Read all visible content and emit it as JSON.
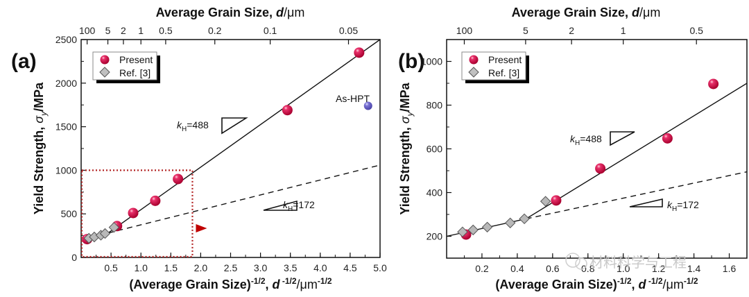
{
  "chart_data": [
    {
      "panel": "(a)",
      "type": "scatter",
      "title": "",
      "top_axis_title": "Average Grain Size, d/μm",
      "top_tick_values_um": [
        100,
        5,
        2,
        1,
        0.5,
        0.2,
        0.1,
        0.05
      ],
      "top_tick_labels": [
        "100",
        "5",
        "2",
        "1",
        "0.5",
        "0.2",
        "0.1",
        "0.05"
      ],
      "xlabel": "(Average Grain Size)^-1/2, d^-1/2/μm^-1/2",
      "ylabel": "Yield Strength, σy/MPa",
      "xlim": [
        0,
        5.0
      ],
      "ylim": [
        0,
        2500
      ],
      "x_ticks": [
        0.5,
        1.0,
        1.5,
        2.0,
        2.5,
        3.0,
        3.5,
        4.0,
        4.5,
        5.0
      ],
      "x_tick_labels": [
        "0.5",
        "1.0",
        "1.5",
        "2.0",
        "2.5",
        "3.0",
        "3.5",
        "4.0",
        "4.5",
        "5.0"
      ],
      "y_ticks": [
        0,
        500,
        1000,
        1500,
        2000,
        2500
      ],
      "y_tick_labels": [
        "0",
        "500",
        "1000",
        "1500",
        "2000",
        "2500"
      ],
      "legend": {
        "position": "top-left",
        "entries": [
          "Present",
          "Ref. [3]"
        ]
      },
      "series": [
        {
          "name": "Present",
          "marker": "sphere",
          "color": "#d0104c",
          "x": [
            0.1,
            0.6,
            0.87,
            1.24,
            1.62,
            3.45,
            4.65
          ],
          "y": [
            210,
            360,
            510,
            650,
            900,
            1690,
            2350
          ]
        },
        {
          "name": "Ref. [3]",
          "marker": "diamond",
          "color": "#b8b8b8",
          "x": [
            0.13,
            0.22,
            0.33,
            0.4,
            0.55
          ],
          "y": [
            220,
            235,
            255,
            275,
            345
          ]
        },
        {
          "name": "As-HPT",
          "marker": "sphere",
          "color": "#6e66c8",
          "x": [
            4.8
          ],
          "y": [
            1740
          ]
        }
      ],
      "fit_lines": [
        {
          "name": "kH=488 fit",
          "style": "solid",
          "slope": 488,
          "x": [
            0.1,
            0.45,
            5.0
          ],
          "y": [
            200,
            280,
            2500
          ]
        },
        {
          "name": "kH=172 fit",
          "style": "dashed",
          "slope": 172,
          "x": [
            0.45,
            5.0
          ],
          "y": [
            280,
            1060
          ]
        }
      ],
      "annotations": [
        {
          "text_k": "k",
          "text_sub": "H",
          "text_val": "=488",
          "kind": "slope-488"
        },
        {
          "text_k": "k",
          "text_sub": "H",
          "text_val": "=172",
          "kind": "slope-172"
        },
        {
          "text": "As-HPT",
          "kind": "label"
        }
      ],
      "zoom_box": {
        "x": [
          0,
          1.85
        ],
        "y": [
          0,
          1000
        ],
        "color": "#b22222"
      }
    },
    {
      "panel": "(b)",
      "type": "scatter",
      "top_axis_title": "Average Grain Size, d/μm",
      "top_tick_values_um": [
        100,
        5,
        2,
        1,
        0.5
      ],
      "top_tick_labels": [
        "100",
        "5",
        "2",
        "1",
        "0.5"
      ],
      "xlabel": "(Average Grain Size)^-1/2, d^-1/2/μm^-1/2",
      "ylabel": "Yield Strength, σy/MPa",
      "xlim": [
        0,
        1.7
      ],
      "ylim": [
        100,
        1100
      ],
      "x_ticks": [
        0.2,
        0.4,
        0.6,
        0.8,
        1.0,
        1.2,
        1.4,
        1.6
      ],
      "x_tick_labels": [
        "0.2",
        "0.4",
        "0.6",
        "0.8",
        "1.0",
        "1.2",
        "1.4",
        "1.6"
      ],
      "y_ticks": [
        200,
        400,
        600,
        800,
        1000
      ],
      "y_tick_labels": [
        "200",
        "400",
        "600",
        "800",
        "1000"
      ],
      "legend": {
        "position": "top-left",
        "entries": [
          "Present",
          "Ref. [3]"
        ]
      },
      "series": [
        {
          "name": "Present",
          "marker": "sphere",
          "color": "#d0104c",
          "x": [
            0.11,
            0.62,
            0.87,
            1.25,
            1.51
          ],
          "y": [
            208,
            364,
            510,
            648,
            897
          ]
        },
        {
          "name": "Ref. [3]",
          "marker": "diamond",
          "color": "#b8b8b8",
          "x": [
            0.09,
            0.15,
            0.23,
            0.36,
            0.44,
            0.56
          ],
          "y": [
            220,
            229,
            242,
            261,
            280,
            360
          ]
        }
      ],
      "fit_lines": [
        {
          "name": "kH=488 fit",
          "style": "solid",
          "slope": 488,
          "x": [
            0,
            0.45,
            1.7
          ],
          "y": [
            200,
            280,
            900
          ]
        },
        {
          "name": "kH=172 fit",
          "style": "dashed",
          "slope": 172,
          "x": [
            0.45,
            1.7
          ],
          "y": [
            280,
            495
          ]
        }
      ],
      "annotations": [
        {
          "text_k": "k",
          "text_sub": "H",
          "text_val": "=488",
          "kind": "slope-488"
        },
        {
          "text_k": "k",
          "text_sub": "H",
          "text_val": "=172",
          "kind": "slope-172"
        }
      ]
    }
  ],
  "watermark": "材料科学与工程"
}
